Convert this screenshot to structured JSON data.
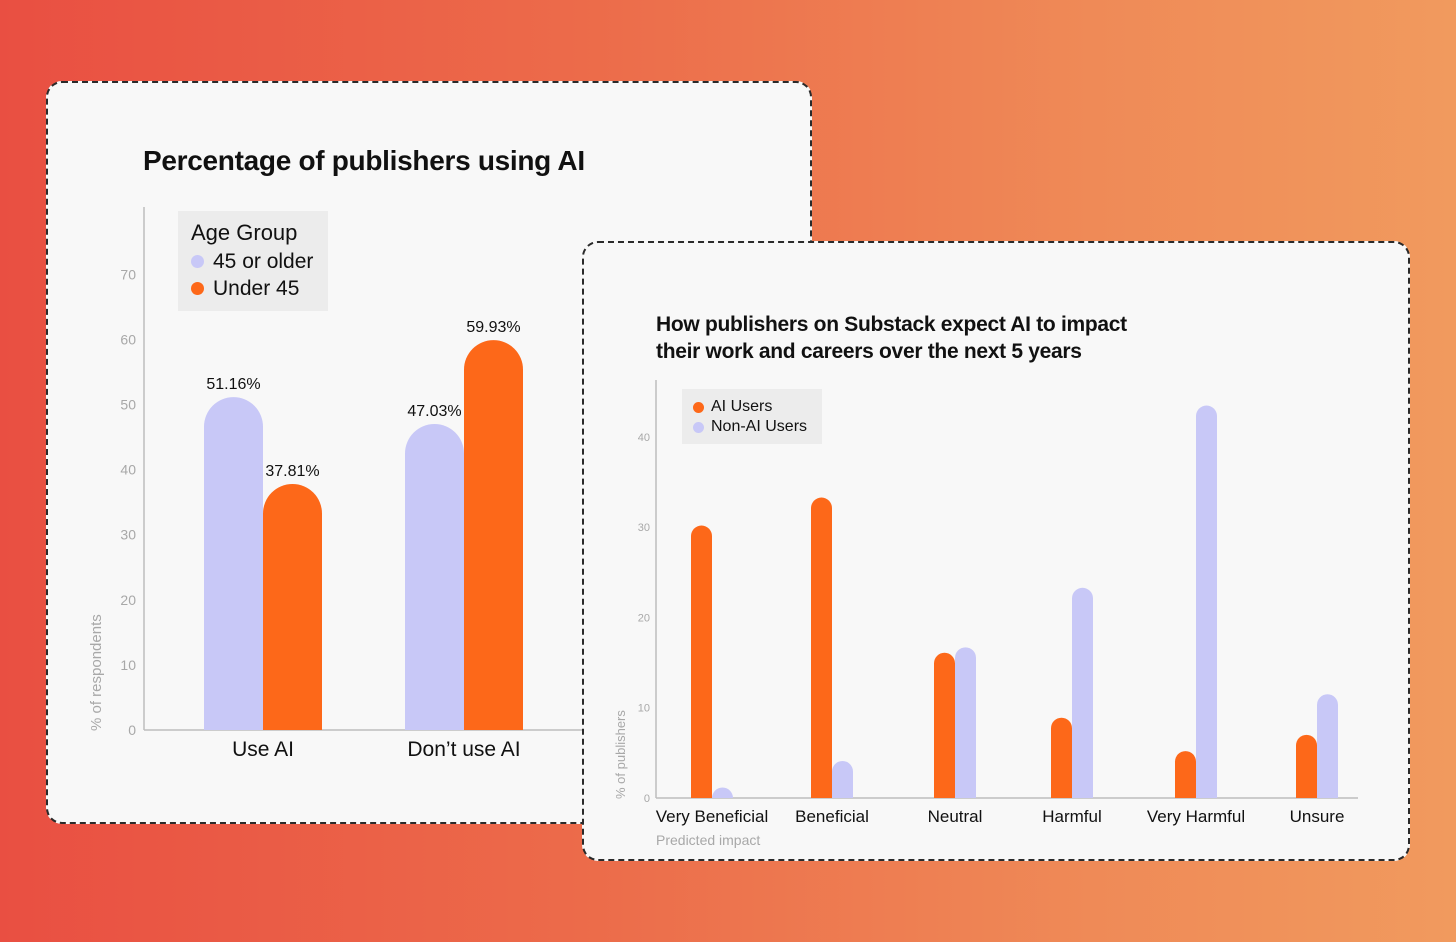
{
  "colors": {
    "lavender": "#c8c8f7",
    "orange": "#fd6819",
    "axis": "#bdbdbd"
  },
  "chart_data": [
    {
      "type": "bar",
      "title": "Percentage of publishers using AI",
      "ylabel": "% of respondents",
      "xlabel": "",
      "ylim": [
        0,
        75
      ],
      "yticks": [
        0,
        10,
        20,
        30,
        40,
        50,
        60,
        70
      ],
      "categories": [
        "Use AI",
        "Don’t use AI"
      ],
      "legend_title": "Age Group",
      "legend_position": "top-left",
      "grid": false,
      "series": [
        {
          "name": "45 or older",
          "color": "#c8c8f7",
          "values": [
            51.16,
            47.03
          ],
          "labels": [
            "51.16%",
            "47.03%"
          ]
        },
        {
          "name": "Under 45",
          "color": "#fd6819",
          "values": [
            37.81,
            59.93
          ],
          "labels": [
            "37.81%",
            "59.93%"
          ]
        }
      ]
    },
    {
      "type": "bar",
      "title": "How publishers on Substack expect AI to impact their work and careers over the next 5 years",
      "ylabel": "% of publishers",
      "xlabel": "Predicted impact",
      "ylim": [
        0,
        45
      ],
      "yticks": [
        0,
        10,
        20,
        30,
        40
      ],
      "categories": [
        "Very Beneficial",
        "Beneficial",
        "Neutral",
        "Harmful",
        "Very Harmful",
        "Unsure"
      ],
      "legend_position": "top-left",
      "grid": false,
      "series": [
        {
          "name": "AI Users",
          "color": "#fd6819",
          "values": [
            30.2,
            33.3,
            16.1,
            8.9,
            5.2,
            7.0
          ]
        },
        {
          "name": "Non-AI Users",
          "color": "#c8c8f7",
          "values": [
            0.7,
            4.1,
            16.7,
            23.3,
            43.5,
            11.5
          ]
        }
      ]
    }
  ]
}
